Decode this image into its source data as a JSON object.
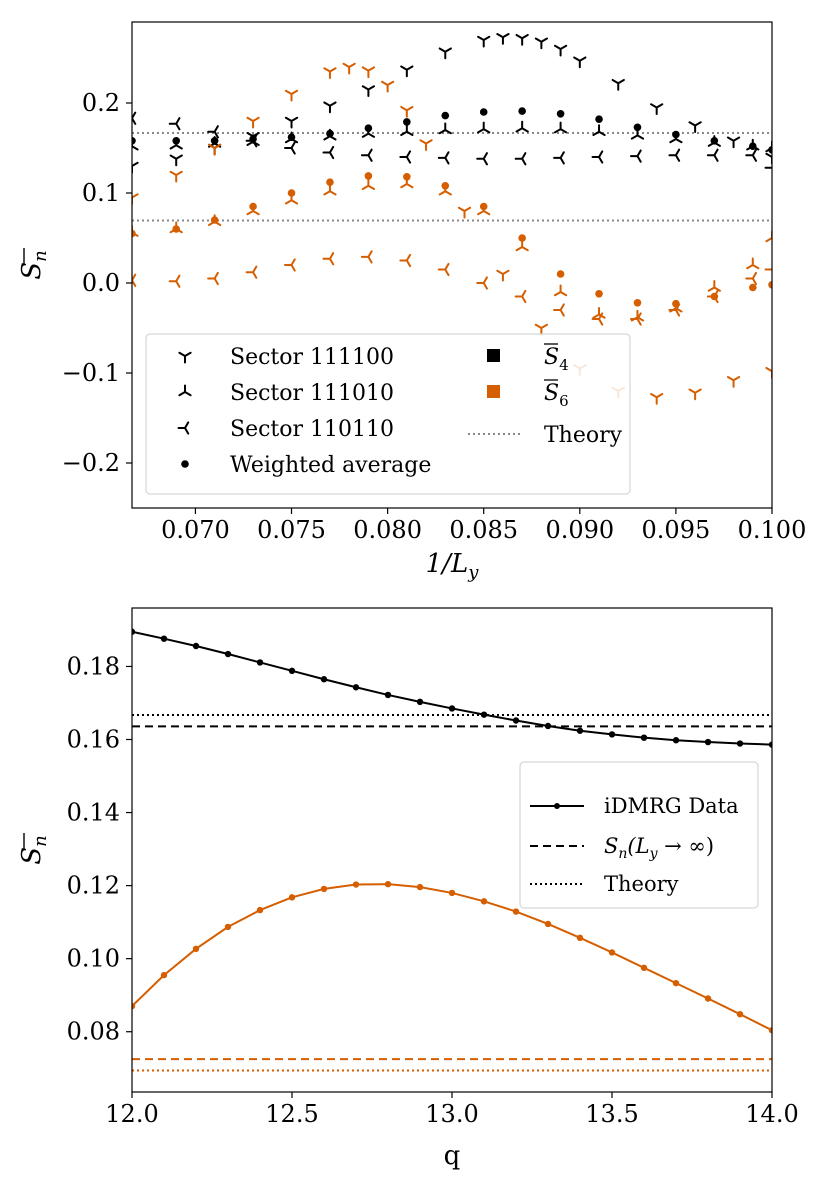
{
  "colors": {
    "s4": "#000000",
    "s6": "#d55e00",
    "theory": "#888888",
    "frame": "#000000",
    "legend_border": "#cccccc"
  },
  "chart_data": [
    {
      "type": "scatter",
      "xlabel": "1/L_y",
      "ylabel": "S̄_n",
      "xlim": [
        0.0667,
        0.1
      ],
      "ylim": [
        -0.25,
        0.29
      ],
      "xticks": [
        0.07,
        0.075,
        0.08,
        0.085,
        0.09,
        0.095,
        0.1
      ],
      "xtick_labels": [
        "0.070",
        "0.075",
        "0.080",
        "0.085",
        "0.090",
        "0.095",
        "0.100"
      ],
      "yticks": [
        -0.2,
        -0.1,
        0.0,
        0.1,
        0.2
      ],
      "ytick_labels": [
        "−0.2",
        "−0.1",
        "0.0",
        "0.1",
        "0.2"
      ],
      "theory_lines": [
        0.1667,
        0.0694
      ],
      "series": [
        {
          "name": "Sector 111100 S̄4",
          "marker": "tri_down",
          "color": "s4",
          "points": [
            [
              0.0667,
              0.13
            ],
            [
              0.069,
              0.138
            ],
            [
              0.071,
              0.15
            ],
            [
              0.073,
              0.163
            ],
            [
              0.075,
              0.18
            ],
            [
              0.077,
              0.197
            ],
            [
              0.079,
              0.215
            ],
            [
              0.081,
              0.237
            ],
            [
              0.083,
              0.257
            ],
            [
              0.085,
              0.27
            ],
            [
              0.086,
              0.273
            ],
            [
              0.087,
              0.272
            ],
            [
              0.088,
              0.268
            ],
            [
              0.089,
              0.26
            ],
            [
              0.09,
              0.247
            ],
            [
              0.092,
              0.222
            ],
            [
              0.094,
              0.195
            ],
            [
              0.096,
              0.175
            ],
            [
              0.098,
              0.158
            ],
            [
              0.1,
              0.14
            ]
          ]
        },
        {
          "name": "Sector 111010 S̄4",
          "marker": "tri_up",
          "color": "s4",
          "points": [
            [
              0.0667,
              0.152
            ],
            [
              0.069,
              0.153
            ],
            [
              0.071,
              0.155
            ],
            [
              0.073,
              0.157
            ],
            [
              0.075,
              0.16
            ],
            [
              0.077,
              0.163
            ],
            [
              0.079,
              0.166
            ],
            [
              0.081,
              0.168
            ],
            [
              0.083,
              0.17
            ],
            [
              0.085,
              0.171
            ],
            [
              0.087,
              0.172
            ],
            [
              0.089,
              0.171
            ],
            [
              0.091,
              0.168
            ],
            [
              0.093,
              0.164
            ],
            [
              0.095,
              0.16
            ],
            [
              0.097,
              0.156
            ],
            [
              0.099,
              0.152
            ],
            [
              0.1,
              0.15
            ]
          ]
        },
        {
          "name": "Sector 110110 S̄4",
          "marker": "tri_left",
          "color": "s4",
          "points": [
            [
              0.0667,
              0.183
            ],
            [
              0.069,
              0.177
            ],
            [
              0.071,
              0.168
            ],
            [
              0.073,
              0.158
            ],
            [
              0.075,
              0.15
            ],
            [
              0.077,
              0.145
            ],
            [
              0.079,
              0.142
            ],
            [
              0.081,
              0.14
            ],
            [
              0.083,
              0.139
            ],
            [
              0.085,
              0.138
            ],
            [
              0.087,
              0.138
            ],
            [
              0.089,
              0.139
            ],
            [
              0.091,
              0.14
            ],
            [
              0.093,
              0.141
            ],
            [
              0.095,
              0.142
            ],
            [
              0.097,
              0.142
            ],
            [
              0.099,
              0.142
            ],
            [
              0.1,
              0.128
            ]
          ]
        },
        {
          "name": "Weighted average S̄4",
          "marker": "dot",
          "color": "s4",
          "points": [
            [
              0.0667,
              0.158
            ],
            [
              0.069,
              0.158
            ],
            [
              0.071,
              0.158
            ],
            [
              0.073,
              0.16
            ],
            [
              0.075,
              0.162
            ],
            [
              0.077,
              0.166
            ],
            [
              0.079,
              0.172
            ],
            [
              0.081,
              0.179
            ],
            [
              0.083,
              0.186
            ],
            [
              0.085,
              0.19
            ],
            [
              0.087,
              0.191
            ],
            [
              0.089,
              0.188
            ],
            [
              0.091,
              0.182
            ],
            [
              0.093,
              0.173
            ],
            [
              0.095,
              0.165
            ],
            [
              0.097,
              0.158
            ],
            [
              0.099,
              0.152
            ],
            [
              0.1,
              0.148
            ]
          ]
        },
        {
          "name": "Sector 111100 S̄6",
          "marker": "tri_down",
          "color": "s6",
          "points": [
            [
              0.0667,
              0.095
            ],
            [
              0.069,
              0.12
            ],
            [
              0.071,
              0.15
            ],
            [
              0.073,
              0.18
            ],
            [
              0.075,
              0.21
            ],
            [
              0.077,
              0.235
            ],
            [
              0.078,
              0.24
            ],
            [
              0.079,
              0.236
            ],
            [
              0.08,
              0.22
            ],
            [
              0.081,
              0.192
            ],
            [
              0.082,
              0.155
            ],
            [
              0.084,
              0.08
            ],
            [
              0.086,
              0.01
            ],
            [
              0.088,
              -0.05
            ],
            [
              0.09,
              -0.095
            ],
            [
              0.092,
              -0.12
            ],
            [
              0.094,
              -0.127
            ],
            [
              0.096,
              -0.122
            ],
            [
              0.098,
              -0.108
            ],
            [
              0.1,
              -0.098
            ]
          ]
        },
        {
          "name": "Sector 111010 S̄6",
          "marker": "tri_up",
          "color": "s6",
          "points": [
            [
              0.0667,
              0.056
            ],
            [
              0.069,
              0.06
            ],
            [
              0.071,
              0.068
            ],
            [
              0.073,
              0.08
            ],
            [
              0.075,
              0.092
            ],
            [
              0.077,
              0.102
            ],
            [
              0.079,
              0.108
            ],
            [
              0.081,
              0.11
            ],
            [
              0.083,
              0.102
            ],
            [
              0.085,
              0.08
            ],
            [
              0.087,
              0.04
            ],
            [
              0.089,
              -0.01
            ],
            [
              0.091,
              -0.035
            ],
            [
              0.093,
              -0.038
            ],
            [
              0.095,
              -0.028
            ],
            [
              0.097,
              -0.005
            ],
            [
              0.099,
              0.02
            ],
            [
              0.1,
              0.05
            ]
          ]
        },
        {
          "name": "Sector 110110 S̄6",
          "marker": "tri_left",
          "color": "s6",
          "points": [
            [
              0.0667,
              0.003
            ],
            [
              0.069,
              0.002
            ],
            [
              0.071,
              0.005
            ],
            [
              0.073,
              0.012
            ],
            [
              0.075,
              0.02
            ],
            [
              0.077,
              0.027
            ],
            [
              0.079,
              0.029
            ],
            [
              0.081,
              0.025
            ],
            [
              0.083,
              0.015
            ],
            [
              0.085,
              0.0
            ],
            [
              0.087,
              -0.015
            ],
            [
              0.089,
              -0.03
            ],
            [
              0.091,
              -0.04
            ],
            [
              0.093,
              -0.04
            ],
            [
              0.095,
              -0.03
            ],
            [
              0.097,
              -0.015
            ],
            [
              0.099,
              0.005
            ],
            [
              0.1,
              0.015
            ]
          ]
        },
        {
          "name": "Weighted average S̄6",
          "marker": "dot",
          "color": "s6",
          "points": [
            [
              0.0667,
              0.055
            ],
            [
              0.069,
              0.06
            ],
            [
              0.071,
              0.07
            ],
            [
              0.073,
              0.085
            ],
            [
              0.075,
              0.1
            ],
            [
              0.077,
              0.112
            ],
            [
              0.079,
              0.119
            ],
            [
              0.081,
              0.118
            ],
            [
              0.083,
              0.108
            ],
            [
              0.085,
              0.085
            ],
            [
              0.087,
              0.05
            ],
            [
              0.089,
              0.01
            ],
            [
              0.091,
              -0.012
            ],
            [
              0.093,
              -0.022
            ],
            [
              0.095,
              -0.023
            ],
            [
              0.097,
              -0.015
            ],
            [
              0.099,
              -0.005
            ],
            [
              0.1,
              -0.002
            ]
          ]
        }
      ],
      "legend": {
        "col1": [
          {
            "marker": "tri_down",
            "label": "Sector 111100"
          },
          {
            "marker": "tri_up",
            "label": "Sector 111010"
          },
          {
            "marker": "tri_left",
            "label": "Sector 110110"
          },
          {
            "marker": "dot",
            "label": "Weighted average"
          }
        ],
        "col2": [
          {
            "marker": "square_s4",
            "label": "S̄4"
          },
          {
            "marker": "square_s6",
            "label": "S̄6"
          },
          {
            "marker": "dotted_line",
            "label": "Theory"
          }
        ]
      }
    },
    {
      "type": "line",
      "xlabel": "q",
      "ylabel": "S̄_n",
      "xlim": [
        12.0,
        14.0
      ],
      "ylim": [
        0.0635,
        0.196
      ],
      "xticks": [
        12.0,
        12.5,
        13.0,
        13.5,
        14.0
      ],
      "xtick_labels": [
        "12.0",
        "12.5",
        "13.0",
        "13.5",
        "14.0"
      ],
      "yticks": [
        0.08,
        0.1,
        0.12,
        0.14,
        0.16,
        0.18
      ],
      "ytick_labels": [
        "0.08",
        "0.10",
        "0.12",
        "0.14",
        "0.16",
        "0.18"
      ],
      "x": [
        12.0,
        12.1,
        12.2,
        12.3,
        12.4,
        12.5,
        12.6,
        12.7,
        12.8,
        12.9,
        13.0,
        13.1,
        13.2,
        13.3,
        13.4,
        13.5,
        13.6,
        13.7,
        13.8,
        13.9,
        14.0
      ],
      "series": [
        {
          "name": "iDMRG Data S̄4",
          "color": "s4",
          "values": [
            0.1895,
            0.1876,
            0.1856,
            0.1834,
            0.1811,
            0.1788,
            0.1765,
            0.1743,
            0.1722,
            0.1703,
            0.1685,
            0.1668,
            0.1652,
            0.1637,
            0.1624,
            0.1614,
            0.1605,
            0.1598,
            0.1593,
            0.1589,
            0.1586
          ],
          "extrapolation": 0.1636,
          "theory": 0.1667
        },
        {
          "name": "iDMRG Data S̄6",
          "color": "s6",
          "values": [
            0.087,
            0.0955,
            0.1027,
            0.1087,
            0.1133,
            0.1168,
            0.1191,
            0.1203,
            0.1204,
            0.1196,
            0.118,
            0.1157,
            0.1129,
            0.1095,
            0.1057,
            0.1017,
            0.0975,
            0.0933,
            0.0891,
            0.0848,
            0.0804
          ],
          "extrapolation": 0.0725,
          "theory": 0.0694
        }
      ],
      "legend": [
        {
          "style": "line_dot",
          "label": "iDMRG Data"
        },
        {
          "style": "dashed",
          "label": "S_n(L_y → ∞)"
        },
        {
          "style": "dotted",
          "label": "Theory"
        }
      ]
    }
  ]
}
